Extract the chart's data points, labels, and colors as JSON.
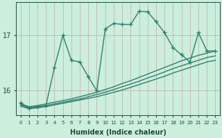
{
  "xlabel": "Humidex (Indice chaleur)",
  "bg_color": "#cceedd",
  "grid_color": "#c0a8a8",
  "line_color": "#2e7d6e",
  "marker": "+",
  "markersize": 5,
  "linewidth": 1.0,
  "x_ticks": [
    0,
    1,
    2,
    3,
    4,
    5,
    6,
    7,
    8,
    9,
    10,
    11,
    12,
    13,
    14,
    15,
    16,
    17,
    18,
    19,
    20,
    21,
    22,
    23
  ],
  "yticks": [
    16,
    17
  ],
  "ylim": [
    15.55,
    17.6
  ],
  "xlim": [
    -0.5,
    23.5
  ],
  "line1_y": [
    15.72,
    15.67,
    15.69,
    15.71,
    15.74,
    15.77,
    15.8,
    15.83,
    15.86,
    15.89,
    15.93,
    15.97,
    16.01,
    16.06,
    16.11,
    16.16,
    16.21,
    16.26,
    16.32,
    16.37,
    16.42,
    16.47,
    16.52,
    16.55
  ],
  "line2_y": [
    15.74,
    15.69,
    15.71,
    15.73,
    15.76,
    15.79,
    15.82,
    15.85,
    15.89,
    15.93,
    15.97,
    16.02,
    16.07,
    16.12,
    16.17,
    16.23,
    16.28,
    16.34,
    16.4,
    16.45,
    16.5,
    16.55,
    16.6,
    16.63
  ],
  "line3_y": [
    15.76,
    15.71,
    15.73,
    15.76,
    15.79,
    15.82,
    15.85,
    15.89,
    15.93,
    15.97,
    16.02,
    16.07,
    16.13,
    16.18,
    16.24,
    16.3,
    16.36,
    16.42,
    16.48,
    16.54,
    16.59,
    16.64,
    16.68,
    16.72
  ],
  "jagged_y": [
    15.78,
    15.68,
    15.71,
    15.73,
    16.42,
    17.0,
    16.55,
    16.52,
    16.25,
    16.0,
    17.12,
    17.22,
    17.2,
    17.2,
    17.44,
    17.43,
    17.25,
    17.05,
    16.78,
    16.65,
    16.52,
    17.05,
    16.72,
    16.72
  ]
}
